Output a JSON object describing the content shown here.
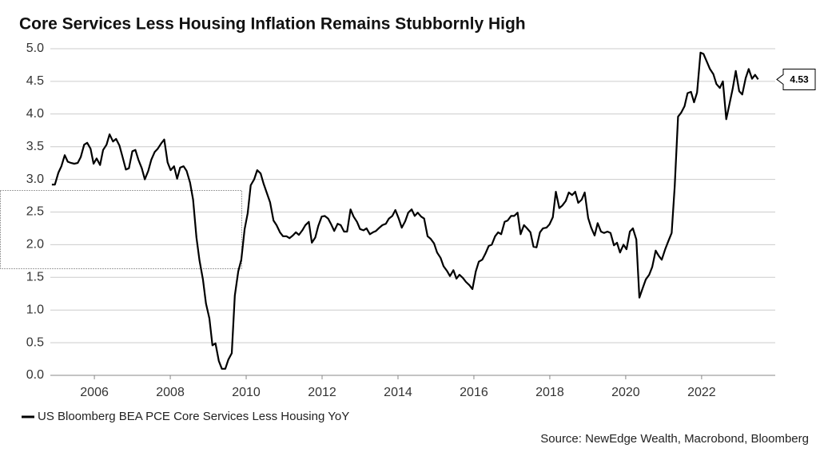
{
  "chart_data": {
    "type": "line",
    "title": "Core Services Less Housing Inflation Remains Stubbornly High",
    "source": "Source: NewEdge Wealth, Macrobond, Bloomberg",
    "x": [
      2004.88,
      2004.96,
      2005.05,
      2005.13,
      2005.22,
      2005.3,
      2005.39,
      2005.47,
      2005.56,
      2005.64,
      2005.73,
      2005.81,
      2005.9,
      2005.98,
      2006.06,
      2006.15,
      2006.23,
      2006.32,
      2006.4,
      2006.49,
      2006.57,
      2006.66,
      2006.74,
      2006.83,
      2006.91,
      2007.0,
      2007.08,
      2007.16,
      2007.25,
      2007.33,
      2007.42,
      2007.5,
      2007.59,
      2007.67,
      2007.76,
      2007.84,
      2007.93,
      2008.01,
      2008.1,
      2008.18,
      2008.26,
      2008.35,
      2008.43,
      2008.52,
      2008.6,
      2008.69,
      2008.77,
      2008.86,
      2008.94,
      2009.03,
      2009.11,
      2009.19,
      2009.28,
      2009.36,
      2009.45,
      2009.53,
      2009.62,
      2009.7,
      2009.79,
      2009.87,
      2009.96,
      2010.04,
      2010.12,
      2010.21,
      2010.29,
      2010.38,
      2010.46,
      2010.55,
      2010.63,
      2010.72,
      2010.8,
      2010.89,
      2010.97,
      2011.06,
      2011.14,
      2011.23,
      2011.31,
      2011.39,
      2011.48,
      2011.56,
      2011.65,
      2011.73,
      2011.82,
      2011.9,
      2011.99,
      2012.07,
      2012.16,
      2012.24,
      2012.32,
      2012.41,
      2012.49,
      2012.58,
      2012.66,
      2012.75,
      2012.83,
      2012.92,
      2013.0,
      2013.09,
      2013.17,
      2013.26,
      2013.34,
      2013.42,
      2013.51,
      2013.59,
      2013.68,
      2013.76,
      2013.85,
      2013.93,
      2014.02,
      2014.1,
      2014.19,
      2014.27,
      2014.36,
      2014.44,
      2014.52,
      2014.61,
      2014.69,
      2014.78,
      2014.86,
      2014.95,
      2015.03,
      2015.12,
      2015.2,
      2015.29,
      2015.37,
      2015.46,
      2015.54,
      2015.62,
      2015.71,
      2015.79,
      2015.88,
      2015.96,
      2016.05,
      2016.13,
      2016.22,
      2016.3,
      2016.39,
      2016.47,
      2016.56,
      2016.64,
      2016.72,
      2016.81,
      2016.89,
      2016.98,
      2017.06,
      2017.15,
      2017.23,
      2017.32,
      2017.4,
      2017.49,
      2017.57,
      2017.65,
      2017.74,
      2017.82,
      2017.91,
      2017.99,
      2018.08,
      2018.16,
      2018.25,
      2018.33,
      2018.42,
      2018.5,
      2018.59,
      2018.67,
      2018.75,
      2018.84,
      2018.92,
      2019.01,
      2019.09,
      2019.18,
      2019.26,
      2019.35,
      2019.43,
      2019.52,
      2019.6,
      2019.69,
      2019.77,
      2019.85,
      2019.94,
      2020.02,
      2020.11,
      2020.19,
      2020.28,
      2020.36,
      2020.45,
      2020.53,
      2020.62,
      2020.7,
      2020.79,
      2020.87,
      2020.95,
      2021.04,
      2021.12,
      2021.21,
      2021.29,
      2021.38,
      2021.46,
      2021.55,
      2021.63,
      2021.72,
      2021.8,
      2021.88,
      2021.97,
      2022.05,
      2022.14,
      2022.22,
      2022.31,
      2022.39,
      2022.48,
      2022.56,
      2022.65,
      2022.73,
      2022.82,
      2022.9,
      2022.99,
      2023.07,
      2023.16,
      2023.24,
      2023.33,
      2023.41,
      2023.49
    ],
    "series": [
      {
        "name": "US Bloomberg BEA PCE Core Services Less Housing YoY",
        "color": "#000000",
        "values": [
          2.92,
          2.92,
          3.1,
          3.2,
          3.37,
          3.27,
          3.25,
          3.24,
          3.25,
          3.34,
          3.53,
          3.56,
          3.47,
          3.24,
          3.32,
          3.22,
          3.45,
          3.53,
          3.69,
          3.58,
          3.62,
          3.52,
          3.35,
          3.15,
          3.17,
          3.43,
          3.45,
          3.3,
          3.17,
          3.0,
          3.13,
          3.3,
          3.42,
          3.47,
          3.55,
          3.61,
          3.26,
          3.14,
          3.2,
          3.01,
          3.18,
          3.2,
          3.13,
          2.95,
          2.69,
          2.11,
          1.76,
          1.47,
          1.1,
          0.87,
          0.46,
          0.49,
          0.22,
          0.1,
          0.1,
          0.24,
          0.34,
          1.22,
          1.59,
          1.77,
          2.24,
          2.48,
          2.91,
          3.0,
          3.14,
          3.09,
          2.93,
          2.78,
          2.65,
          2.37,
          2.3,
          2.19,
          2.13,
          2.13,
          2.1,
          2.14,
          2.19,
          2.15,
          2.22,
          2.3,
          2.35,
          2.03,
          2.11,
          2.29,
          2.43,
          2.44,
          2.4,
          2.31,
          2.21,
          2.32,
          2.3,
          2.2,
          2.2,
          2.54,
          2.43,
          2.35,
          2.24,
          2.22,
          2.25,
          2.16,
          2.19,
          2.21,
          2.26,
          2.3,
          2.32,
          2.4,
          2.44,
          2.53,
          2.4,
          2.26,
          2.36,
          2.49,
          2.54,
          2.44,
          2.49,
          2.43,
          2.4,
          2.13,
          2.09,
          2.02,
          1.88,
          1.8,
          1.67,
          1.6,
          1.52,
          1.61,
          1.48,
          1.54,
          1.49,
          1.43,
          1.38,
          1.32,
          1.59,
          1.74,
          1.77,
          1.86,
          1.98,
          2.0,
          2.13,
          2.19,
          2.16,
          2.35,
          2.37,
          2.44,
          2.44,
          2.49,
          2.16,
          2.3,
          2.25,
          2.19,
          1.97,
          1.96,
          2.19,
          2.25,
          2.26,
          2.31,
          2.42,
          2.81,
          2.56,
          2.6,
          2.67,
          2.8,
          2.76,
          2.81,
          2.64,
          2.69,
          2.8,
          2.41,
          2.26,
          2.14,
          2.33,
          2.2,
          2.18,
          2.2,
          2.18,
          1.99,
          2.03,
          1.88,
          2.0,
          1.93,
          2.2,
          2.25,
          2.08,
          1.19,
          1.34,
          1.47,
          1.54,
          1.66,
          1.91,
          1.83,
          1.77,
          1.93,
          2.05,
          2.18,
          2.89,
          3.96,
          4.02,
          4.12,
          4.32,
          4.34,
          4.18,
          4.33,
          4.94,
          4.92,
          4.8,
          4.69,
          4.61,
          4.46,
          4.4,
          4.5,
          3.92,
          4.14,
          4.39,
          4.66,
          4.35,
          4.3,
          4.55,
          4.69,
          4.54,
          4.6,
          4.53
        ]
      }
    ],
    "xlim": [
      2004.84,
      2023.94
    ],
    "xticks": [
      2006,
      2008,
      2010,
      2012,
      2014,
      2016,
      2018,
      2020,
      2022
    ],
    "ylim": [
      0,
      5
    ],
    "yticks": [
      {
        "value": 0,
        "label": "0.0"
      },
      0.5,
      {
        "value": 1,
        "label": "1.0"
      },
      1.5,
      {
        "value": 2,
        "label": "2.0"
      },
      2.5,
      {
        "value": 3,
        "label": "3.0"
      },
      3.5,
      {
        "value": 4,
        "label": "4.0"
      },
      4.5,
      {
        "value": 5,
        "label": "5.0"
      }
    ],
    "grid": true
  }
}
